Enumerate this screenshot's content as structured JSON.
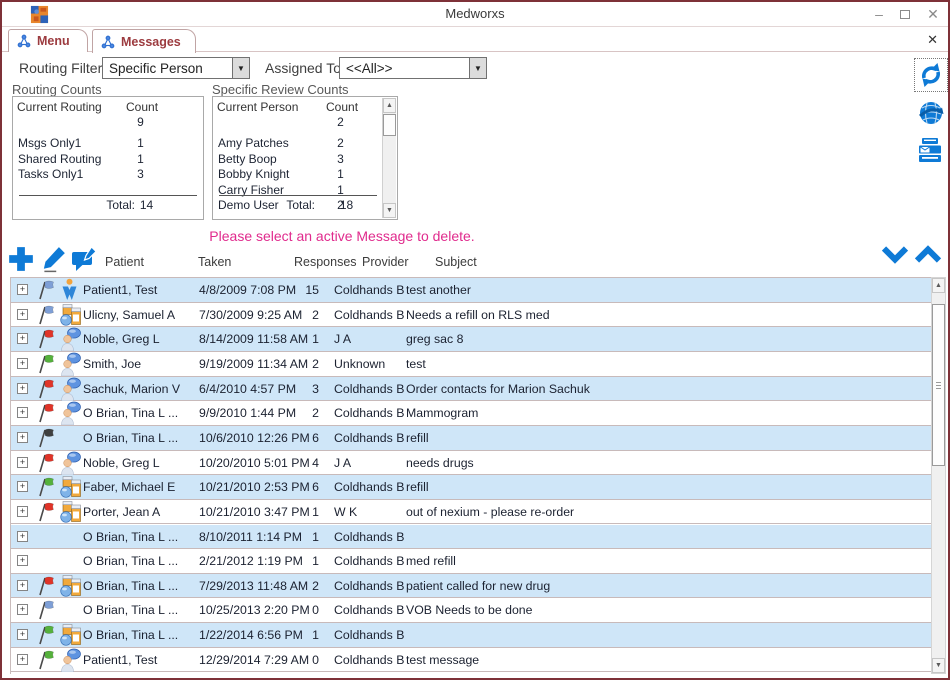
{
  "window": {
    "title": "Medworxs",
    "minimize_glyph": "–",
    "close_glyph": "✕"
  },
  "tabs": [
    {
      "label": "Menu"
    },
    {
      "label": "Messages"
    }
  ],
  "tab_close_glyph": "✕",
  "filters": {
    "routing_label": "Routing Filter:",
    "routing_value": "Specific Person",
    "assigned_label": "Assigned To:",
    "assigned_value": "<<All>>"
  },
  "routing_counts": {
    "title": "Routing Counts",
    "col_name": "Current Routing",
    "col_count": "Count",
    "rows": [
      {
        "name": "",
        "count": "9"
      },
      {
        "name": "Msgs Only1",
        "count": "1"
      },
      {
        "name": "Shared Routing",
        "count": "1"
      },
      {
        "name": "Tasks Only1",
        "count": "3"
      }
    ],
    "total_label": "Total:",
    "total": "14"
  },
  "review_counts": {
    "title": "Specific Review Counts",
    "col_name": "Current Person",
    "col_count": "Count",
    "rows": [
      {
        "name": "",
        "count": "2"
      },
      {
        "name": "Amy Patches",
        "count": "2"
      },
      {
        "name": "Betty Boop",
        "count": "3"
      },
      {
        "name": "Bobby Knight",
        "count": "1"
      },
      {
        "name": "Carry Fisher",
        "count": "1"
      },
      {
        "name": "Demo User",
        "count": "2"
      }
    ],
    "total_label": "Total:",
    "total": "18"
  },
  "delete_hint": "Please select an active Message to delete.",
  "messages": {
    "columns": [
      "Patient",
      "Taken",
      "Responses",
      "Provider",
      "Subject"
    ],
    "rows": [
      {
        "flag": "blue",
        "icon": "figure",
        "patient": "Patient1, Test",
        "taken": "4/8/2009 7:08 PM",
        "responses": "15",
        "provider": "Coldhands B",
        "subject": "test another"
      },
      {
        "flag": "blue",
        "icon": "pills",
        "patient": "Ulicny, Samuel A",
        "taken": "7/30/2009 9:25 AM",
        "responses": "2",
        "provider": "Coldhands B",
        "subject": "Needs a refill on RLS med"
      },
      {
        "flag": "red",
        "icon": "chat",
        "patient": "Noble, Greg L",
        "taken": "8/14/2009 11:58 AM",
        "responses": "1",
        "provider": "J A",
        "subject": "greg sac 8"
      },
      {
        "flag": "green",
        "icon": "chat",
        "patient": "Smith, Joe",
        "taken": "9/19/2009 11:34 AM",
        "responses": "2",
        "provider": "Unknown",
        "subject": "test"
      },
      {
        "flag": "red",
        "icon": "chat",
        "patient": "Sachuk, Marion V",
        "taken": "6/4/2010 4:57 PM",
        "responses": "3",
        "provider": "Coldhands B",
        "subject": "Order contacts for Marion Sachuk"
      },
      {
        "flag": "red",
        "icon": "chat",
        "patient": "O Brian, Tina L ...",
        "taken": "9/9/2010 1:44 PM",
        "responses": "2",
        "provider": "Coldhands B",
        "subject": "Mammogram"
      },
      {
        "flag": "black",
        "icon": "",
        "patient": "O Brian, Tina L ...",
        "taken": "10/6/2010 12:26 PM",
        "responses": "6",
        "provider": "Coldhands B",
        "subject": "refill"
      },
      {
        "flag": "red",
        "icon": "chat",
        "patient": "Noble, Greg L",
        "taken": "10/20/2010 5:01 PM",
        "responses": "4",
        "provider": "J A",
        "subject": "needs drugs"
      },
      {
        "flag": "green",
        "icon": "pills",
        "patient": "Faber, Michael E",
        "taken": "10/21/2010 2:53 PM",
        "responses": "6",
        "provider": "Coldhands B",
        "subject": "refill"
      },
      {
        "flag": "red",
        "icon": "pills",
        "patient": "Porter, Jean A",
        "taken": "10/21/2010 3:47 PM",
        "responses": "1",
        "provider": "W K",
        "subject": "out of nexium - please re-order"
      },
      {
        "flag": "",
        "icon": "",
        "patient": "O Brian, Tina L ...",
        "taken": "8/10/2011 1:14 PM",
        "responses": "1",
        "provider": "Coldhands B",
        "subject": ""
      },
      {
        "flag": "",
        "icon": "",
        "patient": "O Brian, Tina L ...",
        "taken": "2/21/2012 1:19 PM",
        "responses": "1",
        "provider": "Coldhands B",
        "subject": "med refill"
      },
      {
        "flag": "red",
        "icon": "pills",
        "patient": "O Brian, Tina L ...",
        "taken": "7/29/2013 11:48 AM",
        "responses": "2",
        "provider": "Coldhands B",
        "subject": "patient called for new drug"
      },
      {
        "flag": "blue",
        "icon": "",
        "patient": "O Brian, Tina L ...",
        "taken": "10/25/2013 2:20 PM",
        "responses": "0",
        "provider": "Coldhands B",
        "subject": "VOB Needs to be done"
      },
      {
        "flag": "green",
        "icon": "pills",
        "patient": "O Brian, Tina L ...",
        "taken": "1/22/2014 6:56 PM",
        "responses": "1",
        "provider": "Coldhands B",
        "subject": ""
      },
      {
        "flag": "green",
        "icon": "chat",
        "patient": "Patient1, Test",
        "taken": "12/29/2014 7:29 AM",
        "responses": "0",
        "provider": "Coldhands B",
        "subject": "test message"
      }
    ]
  },
  "colors": {
    "accent_blue": "#0e7ad6",
    "row_highlight": "#cfe6f8",
    "hint_pink": "#e02b8d",
    "window_border": "#7e3138",
    "tab_text": "#9c3b3f",
    "flag_blue": "#7e9fd6",
    "flag_red": "#e03428",
    "flag_green": "#55b13c",
    "flag_black": "#3f4040"
  },
  "scroll_glyphs": {
    "up": "▲",
    "down": "▼"
  }
}
